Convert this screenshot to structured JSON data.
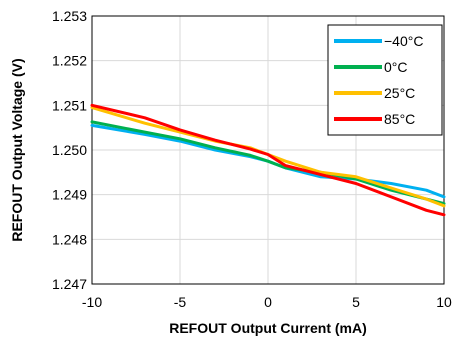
{
  "chart_data": {
    "type": "line",
    "title": "",
    "xlabel": "REFOUT Output Current (mA)",
    "ylabel": "REFOUT Output Voltage (V)",
    "xlim": [
      -10,
      10
    ],
    "ylim": [
      1.247,
      1.253
    ],
    "x_ticks": [
      -10,
      -5,
      0,
      5,
      10
    ],
    "x_tick_labels": [
      "-10",
      "-5",
      "0",
      "5",
      "10"
    ],
    "y_ticks": [
      1.247,
      1.248,
      1.249,
      1.25,
      1.251,
      1.252,
      1.253
    ],
    "y_tick_labels": [
      "1.247",
      "1.248",
      "1.249",
      "1.250",
      "1.251",
      "1.252",
      "1.253"
    ],
    "grid": true,
    "legend_position": "top-right",
    "series": [
      {
        "name": "−40°C",
        "color": "#00B0F0",
        "x": [
          -10,
          -7,
          -5,
          -3,
          -1,
          0,
          1,
          3,
          5,
          7,
          9,
          10
        ],
        "y": [
          1.25055,
          1.25035,
          1.2502,
          1.25,
          1.24985,
          1.24975,
          1.2496,
          1.2494,
          1.24935,
          1.24925,
          1.2491,
          1.24895
        ]
      },
      {
        "name": "0°C",
        "color": "#00B050",
        "x": [
          -10,
          -7,
          -5,
          -3,
          -1,
          0,
          1,
          3,
          5,
          7,
          9,
          10
        ],
        "y": [
          1.25063,
          1.2504,
          1.25025,
          1.25005,
          1.24988,
          1.24975,
          1.2496,
          1.2495,
          1.24935,
          1.2491,
          1.2489,
          1.2488
        ]
      },
      {
        "name": "25°C",
        "color": "#FFC000",
        "x": [
          -10,
          -7,
          -5,
          -3,
          -1,
          0,
          1,
          3,
          5,
          7,
          9,
          10
        ],
        "y": [
          1.25095,
          1.2506,
          1.2504,
          1.2502,
          1.25005,
          1.2499,
          1.24975,
          1.2495,
          1.2494,
          1.24915,
          1.2489,
          1.24875
        ]
      },
      {
        "name": "85°C",
        "color": "#FF0000",
        "x": [
          -10,
          -7,
          -5,
          -3,
          -1,
          0,
          1,
          3,
          5,
          7,
          9,
          10
        ],
        "y": [
          1.251,
          1.25072,
          1.25045,
          1.25022,
          1.25002,
          1.2499,
          1.24965,
          1.24945,
          1.24925,
          1.24895,
          1.24865,
          1.24855
        ]
      }
    ]
  }
}
